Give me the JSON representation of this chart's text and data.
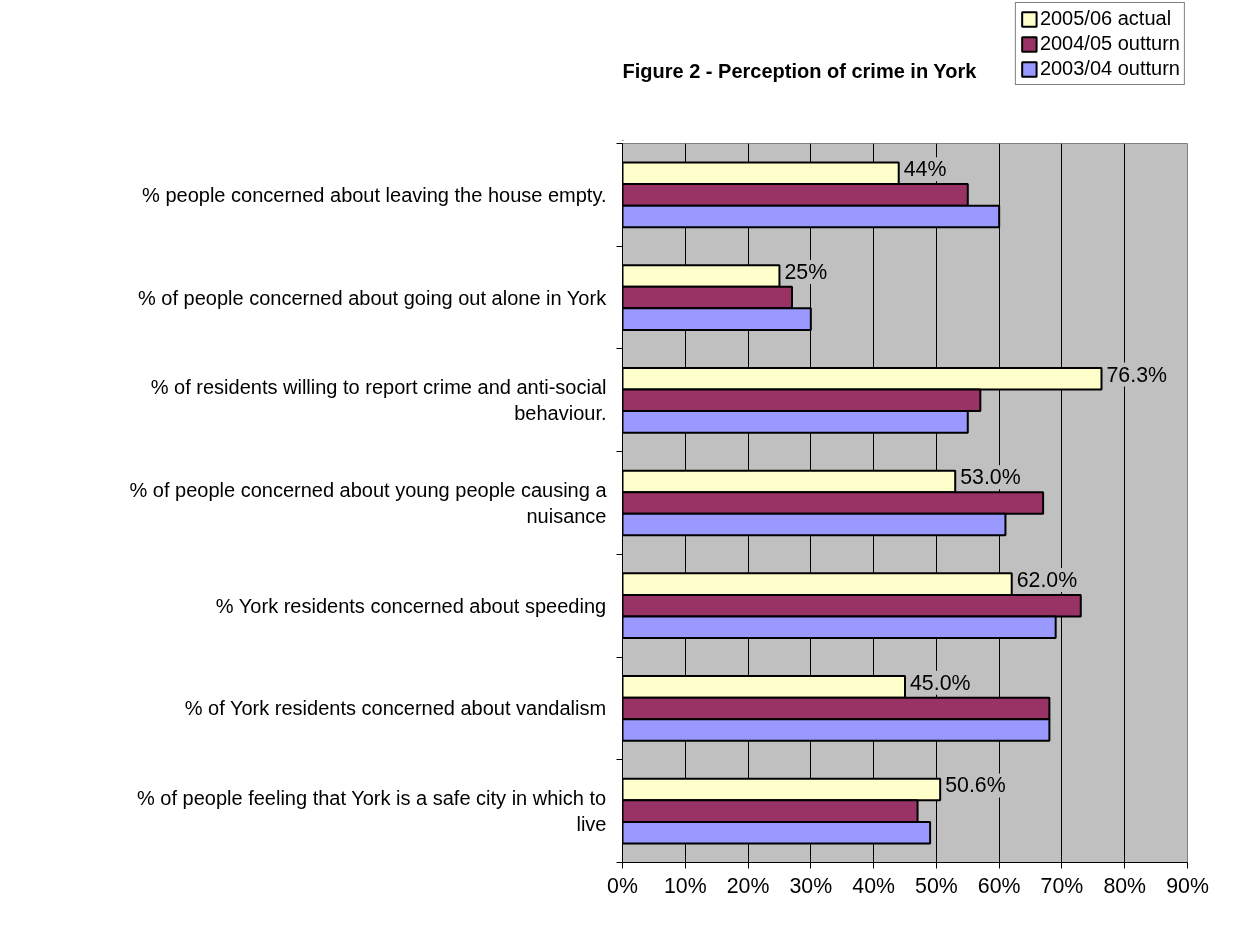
{
  "chart_data": {
    "type": "bar",
    "orientation": "horizontal",
    "title": "Figure 2 - Perception of crime in York",
    "categories": [
      "% people concerned about leaving the house empty.",
      "% of people concerned about going out alone in York",
      "% of residents willing to report crime and anti-social behaviour.",
      "% of people concerned about young people causing a nuisance",
      "% York residents concerned about speeding",
      "% of York residents concerned about vandalism",
      "% of people feeling that York is a safe city in which to live"
    ],
    "series": [
      {
        "name": "2005/06 actual",
        "color": "#ffffcc",
        "values": [
          44,
          25,
          76.3,
          53.0,
          62.0,
          45.0,
          50.6
        ],
        "value_labels": [
          "44%",
          "25%",
          "76.3%",
          "53.0%",
          "62.0%",
          "45.0%",
          "50.6%"
        ]
      },
      {
        "name": "2004/05 outturn",
        "color": "#993366",
        "values": [
          55,
          27,
          57,
          67,
          73,
          68,
          47
        ]
      },
      {
        "name": "2003/04 outturn",
        "color": "#9999ff",
        "values": [
          60,
          30,
          55,
          61,
          69,
          68,
          49
        ]
      }
    ],
    "xlim": [
      0,
      90
    ],
    "xticks": [
      {
        "value": 0,
        "label": "0%"
      },
      {
        "value": 10,
        "label": "10%"
      },
      {
        "value": 20,
        "label": "20%"
      },
      {
        "value": 30,
        "label": "30%"
      },
      {
        "value": 40,
        "label": "40%"
      },
      {
        "value": 50,
        "label": "50%"
      },
      {
        "value": 60,
        "label": "60%"
      },
      {
        "value": 70,
        "label": "70%"
      },
      {
        "value": 80,
        "label": "80%"
      },
      {
        "value": 90,
        "label": "90%"
      }
    ],
    "grid": "x",
    "legend": "top right"
  }
}
